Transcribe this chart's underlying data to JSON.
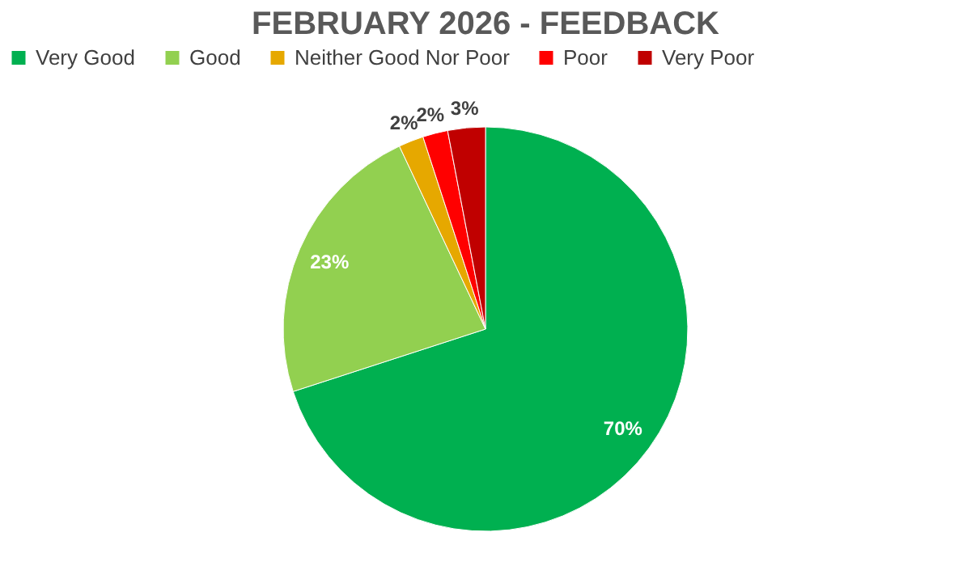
{
  "chart_data": {
    "type": "pie",
    "title": "FEBRUARY 2026 - FEEDBACK",
    "categories": [
      "Very Good",
      "Good",
      "Neither Good Nor Poor",
      "Poor",
      "Very Poor"
    ],
    "values": [
      70,
      23,
      2,
      2,
      3
    ],
    "colors": [
      "#00b050",
      "#92d050",
      "#e6a800",
      "#ff0000",
      "#c00000"
    ],
    "value_labels": [
      "70%",
      "23%",
      "2%",
      "2%",
      "3%"
    ],
    "legend": "top"
  }
}
